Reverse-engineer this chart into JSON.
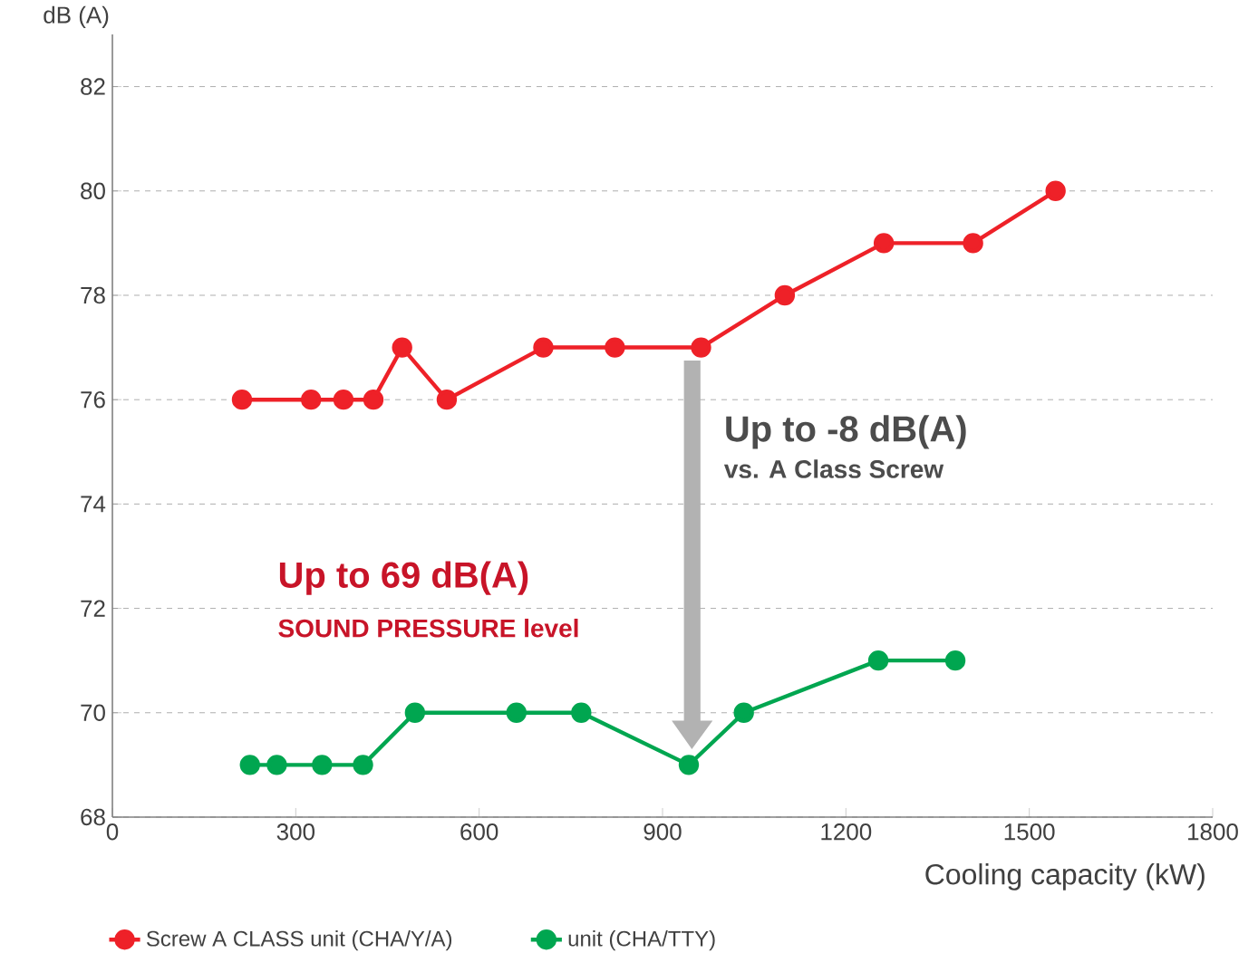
{
  "chart_data": {
    "type": "line",
    "xlabel": "Cooling capacity (kW)",
    "ylabel": "dB (A)",
    "xlim": [
      0,
      1800
    ],
    "xticks": [
      0,
      300,
      600,
      900,
      1200,
      1500,
      1800
    ],
    "ylim": [
      68,
      83
    ],
    "yticks": [
      68,
      70,
      72,
      74,
      76,
      78,
      80,
      82
    ],
    "grid": "y",
    "legend": "bottom",
    "marker": "circle",
    "line_style": "solid",
    "series": [
      {
        "name": "Screw A CLASS unit (CHA/Y/A)",
        "color": "#ee2128",
        "x": [
          212,
          325,
          378,
          427,
          474,
          547,
          705,
          822,
          963,
          1100,
          1262,
          1408,
          1543
        ],
        "values": [
          76,
          76,
          76,
          76,
          77,
          76,
          77,
          77,
          77,
          78,
          79,
          79,
          80
        ]
      },
      {
        "name": "unit (CHA/TTY)",
        "color": "#00a650",
        "x": [
          225,
          269,
          343,
          410,
          495,
          661,
          767,
          943,
          1033,
          1253,
          1379
        ],
        "values": [
          69,
          69,
          69,
          69,
          70,
          70,
          70,
          69,
          70,
          71,
          71
        ]
      }
    ],
    "annotations": [
      "Up to 69 dB(A)",
      "SOUND PRESSURE level",
      "Up to -8 dB(A)",
      "vs. A Class Screw"
    ]
  }
}
